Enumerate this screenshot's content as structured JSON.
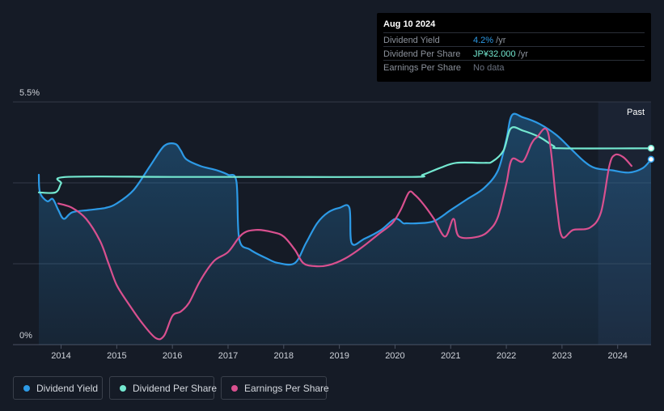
{
  "tooltip": {
    "date": "Aug 10 2024",
    "rows": [
      {
        "label": "Dividend Yield",
        "value": "4.2%",
        "unit": " /yr",
        "color": "#2d9ae6"
      },
      {
        "label": "Dividend Per Share",
        "value": "JP¥32.000",
        "unit": " /yr",
        "color": "#74e8d0"
      },
      {
        "label": "Earnings Per Share",
        "value": "No data",
        "unit": "",
        "color": "#6b7280"
      }
    ]
  },
  "legend": [
    {
      "label": "Dividend Yield",
      "color": "#2d9ae6"
    },
    {
      "label": "Dividend Per Share",
      "color": "#74e8d0"
    },
    {
      "label": "Earnings Per Share",
      "color": "#d9508f"
    }
  ],
  "chart_data": {
    "type": "line",
    "title": "",
    "y_top_label": "5.5%",
    "y_bottom_label": "0%",
    "ylim": [
      0,
      5.5
    ],
    "xlim": [
      2013.6,
      2024.6
    ],
    "x_ticks": [
      "2014",
      "2015",
      "2016",
      "2017",
      "2018",
      "2019",
      "2020",
      "2021",
      "2022",
      "2023",
      "2024"
    ],
    "past_label": "Past",
    "past_start": 2023.65,
    "grid": true,
    "series": [
      {
        "name": "Dividend Yield",
        "color": "#2d9ae6",
        "area": true,
        "points": [
          [
            2013.6,
            3.85
          ],
          [
            2013.62,
            3.45
          ],
          [
            2013.75,
            3.25
          ],
          [
            2013.85,
            3.3
          ],
          [
            2013.95,
            3.05
          ],
          [
            2014.05,
            2.85
          ],
          [
            2014.2,
            3.0
          ],
          [
            2014.5,
            3.05
          ],
          [
            2014.8,
            3.1
          ],
          [
            2015.0,
            3.2
          ],
          [
            2015.3,
            3.5
          ],
          [
            2015.6,
            4.05
          ],
          [
            2015.85,
            4.5
          ],
          [
            2016.05,
            4.55
          ],
          [
            2016.15,
            4.4
          ],
          [
            2016.25,
            4.2
          ],
          [
            2016.5,
            4.05
          ],
          [
            2016.8,
            3.95
          ],
          [
            2017.0,
            3.85
          ],
          [
            2017.15,
            3.7
          ],
          [
            2017.2,
            2.4
          ],
          [
            2017.4,
            2.15
          ],
          [
            2017.7,
            1.95
          ],
          [
            2017.9,
            1.85
          ],
          [
            2018.2,
            1.85
          ],
          [
            2018.4,
            2.3
          ],
          [
            2018.6,
            2.75
          ],
          [
            2018.8,
            3.0
          ],
          [
            2019.0,
            3.1
          ],
          [
            2019.18,
            3.1
          ],
          [
            2019.22,
            2.3
          ],
          [
            2019.45,
            2.4
          ],
          [
            2019.75,
            2.6
          ],
          [
            2020.0,
            2.85
          ],
          [
            2020.15,
            2.75
          ],
          [
            2020.2,
            2.75
          ],
          [
            2020.4,
            2.75
          ],
          [
            2020.7,
            2.8
          ],
          [
            2021.0,
            3.05
          ],
          [
            2021.3,
            3.3
          ],
          [
            2021.6,
            3.55
          ],
          [
            2021.85,
            3.95
          ],
          [
            2022.0,
            4.65
          ],
          [
            2022.1,
            5.2
          ],
          [
            2022.3,
            5.15
          ],
          [
            2022.6,
            5.0
          ],
          [
            2022.9,
            4.75
          ],
          [
            2023.15,
            4.45
          ],
          [
            2023.4,
            4.15
          ],
          [
            2023.6,
            4.0
          ],
          [
            2023.9,
            3.95
          ],
          [
            2024.2,
            3.9
          ],
          [
            2024.45,
            4.0
          ],
          [
            2024.6,
            4.2
          ]
        ]
      },
      {
        "name": "Dividend Per Share",
        "color": "#74e8d0",
        "area": false,
        "points": [
          [
            2013.6,
            3.45
          ],
          [
            2013.9,
            3.45
          ],
          [
            2014.0,
            3.65
          ],
          [
            2014.1,
            3.8
          ],
          [
            2016.0,
            3.8
          ],
          [
            2018.0,
            3.8
          ],
          [
            2020.3,
            3.8
          ],
          [
            2020.5,
            3.85
          ],
          [
            2020.8,
            4.0
          ],
          [
            2021.1,
            4.12
          ],
          [
            2021.6,
            4.12
          ],
          [
            2021.75,
            4.15
          ],
          [
            2021.95,
            4.4
          ],
          [
            2022.08,
            4.9
          ],
          [
            2022.3,
            4.85
          ],
          [
            2022.6,
            4.7
          ],
          [
            2022.85,
            4.5
          ],
          [
            2023.0,
            4.45
          ],
          [
            2024.6,
            4.45
          ]
        ]
      },
      {
        "name": "Earnings Per Share",
        "color": "#d9508f",
        "area": false,
        "points": [
          [
            2013.95,
            3.2
          ],
          [
            2014.2,
            3.1
          ],
          [
            2014.45,
            2.85
          ],
          [
            2014.7,
            2.35
          ],
          [
            2014.85,
            1.85
          ],
          [
            2015.0,
            1.35
          ],
          [
            2015.2,
            0.95
          ],
          [
            2015.45,
            0.5
          ],
          [
            2015.7,
            0.15
          ],
          [
            2015.85,
            0.2
          ],
          [
            2016.0,
            0.65
          ],
          [
            2016.15,
            0.75
          ],
          [
            2016.3,
            0.95
          ],
          [
            2016.5,
            1.45
          ],
          [
            2016.75,
            1.9
          ],
          [
            2017.0,
            2.1
          ],
          [
            2017.25,
            2.5
          ],
          [
            2017.5,
            2.6
          ],
          [
            2017.8,
            2.55
          ],
          [
            2018.0,
            2.45
          ],
          [
            2018.2,
            2.15
          ],
          [
            2018.35,
            1.85
          ],
          [
            2018.55,
            1.78
          ],
          [
            2018.8,
            1.8
          ],
          [
            2019.1,
            1.95
          ],
          [
            2019.4,
            2.2
          ],
          [
            2019.7,
            2.5
          ],
          [
            2019.95,
            2.75
          ],
          [
            2020.1,
            3.05
          ],
          [
            2020.25,
            3.45
          ],
          [
            2020.35,
            3.4
          ],
          [
            2020.5,
            3.2
          ],
          [
            2020.7,
            2.85
          ],
          [
            2020.9,
            2.45
          ],
          [
            2021.05,
            2.85
          ],
          [
            2021.15,
            2.45
          ],
          [
            2021.5,
            2.45
          ],
          [
            2021.7,
            2.6
          ],
          [
            2021.85,
            2.9
          ],
          [
            2022.0,
            3.65
          ],
          [
            2022.1,
            4.2
          ],
          [
            2022.3,
            4.15
          ],
          [
            2022.45,
            4.55
          ],
          [
            2022.55,
            4.7
          ],
          [
            2022.75,
            4.8
          ],
          [
            2022.9,
            3.2
          ],
          [
            2023.0,
            2.45
          ],
          [
            2023.2,
            2.6
          ],
          [
            2023.5,
            2.65
          ],
          [
            2023.7,
            3.0
          ],
          [
            2023.85,
            4.05
          ],
          [
            2023.95,
            4.3
          ],
          [
            2024.1,
            4.25
          ],
          [
            2024.25,
            4.05
          ]
        ]
      }
    ]
  }
}
